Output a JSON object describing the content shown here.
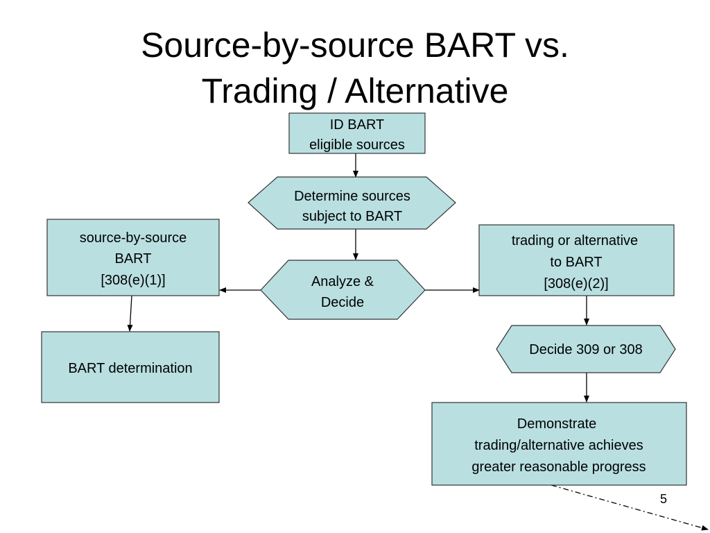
{
  "slide": {
    "title_lines": [
      "Source-by-source BART vs.",
      "Trading / Alternative"
    ],
    "page_number": "5",
    "fill_color": "#b9dfe1"
  },
  "nodes": {
    "id_bart": [
      "ID BART",
      "eligible sources"
    ],
    "determine": [
      "Determine sources",
      "subject to BART"
    ],
    "analyze": [
      "Analyze &",
      "Decide"
    ],
    "source_by_source": [
      "source-by-source",
      "BART",
      "[308(e)(1)]"
    ],
    "bart_determination": [
      "BART determination"
    ],
    "trading": [
      "trading or alternative",
      "to BART",
      "[308(e)(2)]"
    ],
    "decide_309": [
      "Decide 309 or 308"
    ],
    "demonstrate": [
      "Demonstrate",
      "trading/alternative achieves",
      "greater reasonable progress"
    ]
  }
}
